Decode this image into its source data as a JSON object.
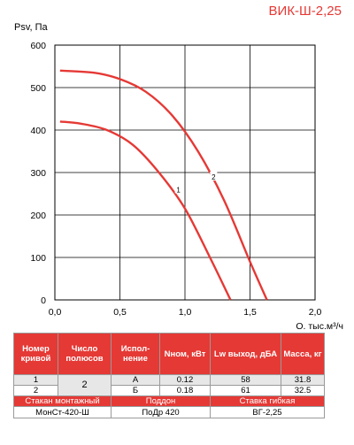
{
  "model": "ВИК-Ш-2,25",
  "chart_data": {
    "type": "line",
    "ylabel": "Psv, Па",
    "xlabel": "Q, тыс.м³/ч",
    "xlim": [
      0,
      2.0
    ],
    "ylim": [
      0,
      600
    ],
    "x_ticks": [
      "0,0",
      "0,5",
      "1,0",
      "1,5",
      "2,0"
    ],
    "y_ticks": [
      "0",
      "100",
      "200",
      "300",
      "400",
      "500",
      "600"
    ],
    "grid": true,
    "series": [
      {
        "name": "1",
        "x": [
          0.04,
          0.2,
          0.4,
          0.6,
          0.8,
          1.0,
          1.2,
          1.35
        ],
        "y": [
          420,
          415,
          400,
          365,
          300,
          215,
          95,
          0
        ]
      },
      {
        "name": "2",
        "x": [
          0.04,
          0.3,
          0.5,
          0.7,
          0.9,
          1.1,
          1.3,
          1.5,
          1.63
        ],
        "y": [
          540,
          535,
          520,
          490,
          435,
          350,
          235,
          90,
          0
        ]
      }
    ],
    "color": "#e53935"
  },
  "table": {
    "headers": [
      "Номер кривой",
      "Число полюсов",
      "Испол-нение",
      "Nном, кВт",
      "Lw выход, дБА",
      "Масса, кг"
    ],
    "rows": [
      {
        "curve": "1",
        "version": "А",
        "power": "0.12",
        "lw": "58",
        "mass": "31.8"
      },
      {
        "curve": "2",
        "version": "Б",
        "power": "0.18",
        "lw": "61",
        "mass": "32.5"
      }
    ],
    "poles": "2",
    "accessories_headers": [
      "Стакан монтажный",
      "Поддон",
      "Ставка гибкая"
    ],
    "accessories_values": [
      "МонСт-420-Ш",
      "ПоДр 420",
      "ВГ-2,25"
    ]
  }
}
